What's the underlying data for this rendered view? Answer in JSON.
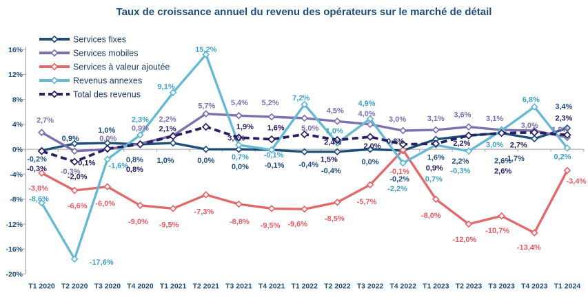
{
  "title": "Taux de croissance annuel du revenu des opérateurs sur le marché de détail",
  "chart_data": {
    "type": "line",
    "title": "Taux de croissance annuel du revenu des opérateurs sur le marché de détail",
    "categories": [
      "T1 2020",
      "T2 2020",
      "T3 2020",
      "T4 2020",
      "T1 2021",
      "T2 2021",
      "T3 2021",
      "T4 2021",
      "T1 2022",
      "T2 2022",
      "T3 2022",
      "T4 2022",
      "T1 2023",
      "T2 2023",
      "T3 2023",
      "T4 2023",
      "T1 2024"
    ],
    "series": [
      {
        "name": "Services fixes",
        "color": "#1F4E79",
        "label_color": "#1F4E79",
        "dashed": false,
        "values": [
          -0.2,
          0.9,
          1.0,
          0.8,
          1.0,
          0.0,
          0.0,
          -0.1,
          -0.4,
          -0.4,
          0.0,
          -0.2,
          1.6,
          2.2,
          2.6,
          1.7,
          3.4
        ]
      },
      {
        "name": "Services mobiles",
        "color": "#7E6FAF",
        "label_color": "#7E6FAF",
        "dashed": false,
        "values": [
          2.7,
          -0.3,
          0.0,
          0.9,
          2.2,
          5.7,
          5.4,
          5.2,
          5.0,
          4.5,
          4.0,
          3.0,
          3.1,
          3.6,
          3.1,
          3.0,
          1.9
        ]
      },
      {
        "name": "Services à valeur ajoutée",
        "color": "#E0696E",
        "label_color": "#E25C64",
        "dashed": false,
        "values": [
          -3.8,
          -6.6,
          -6.0,
          -9.0,
          -9.5,
          -7.3,
          -8.8,
          -9.5,
          -9.6,
          -8.5,
          -5.7,
          -0.1,
          -8.0,
          -12.0,
          -10.7,
          -13.4,
          -3.4
        ]
      },
      {
        "name": "Revenus annexes",
        "color": "#67B8D2",
        "label_color": "#3E9FC1",
        "dashed": false,
        "values": [
          -8.6,
          -17.6,
          -1.6,
          2.3,
          9.1,
          15.2,
          0.7,
          -0.1,
          7.2,
          1.0,
          4.9,
          -2.2,
          0.7,
          -0.3,
          3.0,
          6.8,
          0.2
        ]
      },
      {
        "name": "Total des revenus",
        "color": "#262262",
        "label_color": "#221C5E",
        "dashed": true,
        "values": [
          -0.3,
          -2.0,
          0.1,
          0.8,
          2.1,
          3.6,
          1.9,
          1.6,
          2.4,
          1.5,
          2.0,
          0.8,
          0.9,
          2.2,
          2.6,
          2.7,
          2.3
        ]
      }
    ],
    "ylim": [
      -20,
      16
    ],
    "ytick_step": 4,
    "ytick_labels": [
      "16%",
      "12%",
      "8%",
      "4%",
      "0%",
      "-4%",
      "-8%",
      "-12%",
      "-16%",
      "-20%"
    ],
    "value_format": "french decimal comma, one decimal, percent",
    "grid": "zero line only",
    "legend_position": "top-left",
    "axis_color": "#ADADAD",
    "axis_label_color": "#1F4E79"
  }
}
